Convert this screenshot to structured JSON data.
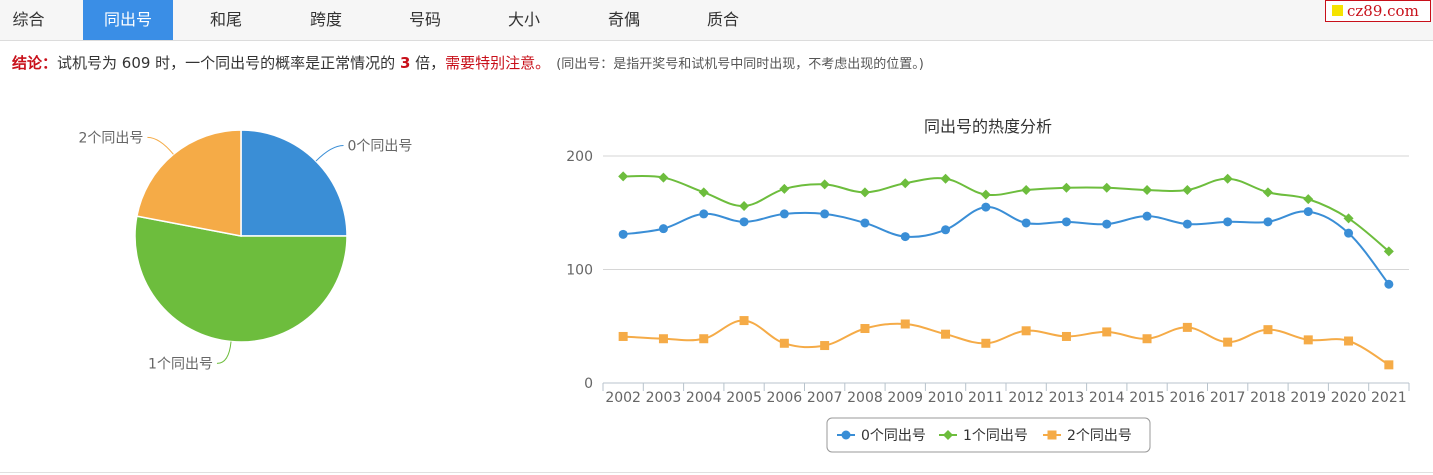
{
  "tabs": [
    "综合",
    "同出号",
    "和尾",
    "跨度",
    "号码",
    "大小",
    "奇偶",
    "质合"
  ],
  "active_tab_index": 1,
  "logo": {
    "text": "cz89.com",
    "color": "#c8101a"
  },
  "conclusion": {
    "label": "结论：",
    "text1": "试机号为 609 时，一个同出号的概率是正常情况的 ",
    "multiple": "3",
    "text2": " 倍，",
    "warning": "需要特别注意。",
    "note": "(同出号：是指开奖号和试机号中同时出现，不考虑出现的位置。)"
  },
  "colors": {
    "series0": "#3a8ed6",
    "series1": "#6dbd3d",
    "series2": "#f5ab47",
    "active_tab": "#3a8ee6"
  },
  "chart_data": [
    {
      "type": "pie",
      "labels": [
        "0个同出号",
        "1个同出号",
        "2个同出号"
      ],
      "values": [
        25,
        53,
        22
      ]
    },
    {
      "type": "line",
      "title": "同出号的热度分析",
      "categories": [
        "2002",
        "2003",
        "2004",
        "2005",
        "2006",
        "2007",
        "2008",
        "2009",
        "2010",
        "2011",
        "2012",
        "2013",
        "2014",
        "2015",
        "2016",
        "2017",
        "2018",
        "2019",
        "2020",
        "2021"
      ],
      "ylim": [
        0,
        200
      ],
      "yticks": [
        "0",
        "100",
        "200"
      ],
      "grid": true,
      "legend_position": "bottom-center",
      "series": [
        {
          "name": "0个同出号",
          "marker": "circle",
          "values": [
            131,
            136,
            149,
            142,
            149,
            149,
            141,
            129,
            135,
            155,
            141,
            142,
            140,
            147,
            140,
            142,
            142,
            151,
            132,
            87
          ]
        },
        {
          "name": "1个同出号",
          "marker": "diamond",
          "values": [
            182,
            181,
            168,
            156,
            171,
            175,
            168,
            176,
            180,
            166,
            170,
            172,
            172,
            170,
            170,
            180,
            168,
            162,
            145,
            116
          ]
        },
        {
          "name": "2个同出号",
          "marker": "square",
          "values": [
            41,
            39,
            39,
            55,
            35,
            33,
            48,
            52,
            43,
            35,
            46,
            41,
            45,
            39,
            49,
            36,
            47,
            38,
            37,
            16
          ]
        }
      ]
    }
  ]
}
